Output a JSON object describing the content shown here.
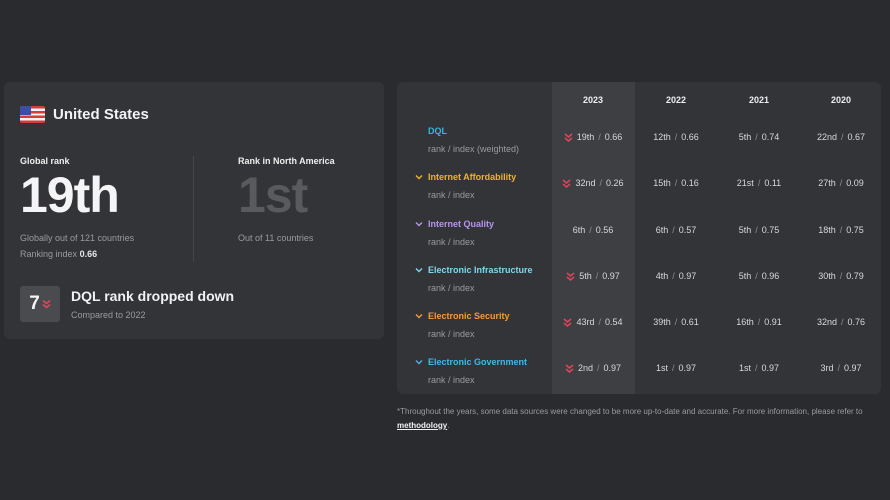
{
  "country": {
    "name": "United States",
    "flag_icon": "us-flag-icon"
  },
  "global_rank": {
    "label": "Global rank",
    "value": "19th",
    "sub": "Globally out of 121 countries",
    "index_label": "Ranking index",
    "index_value": "0.66"
  },
  "regional_rank": {
    "label": "Rank in North America",
    "value": "1st",
    "sub": "Out of 11 countries"
  },
  "change": {
    "amount": "7",
    "title": "DQL rank dropped down",
    "sub": "Compared to 2022",
    "direction_icon": "double-chevron-down-icon"
  },
  "table": {
    "years": [
      "2023",
      "2022",
      "2021",
      "2020"
    ],
    "rows": [
      {
        "name": "DQL",
        "sub": "rank / index (weighted)",
        "color": "#3ab4e0",
        "chevron": false,
        "cells": [
          {
            "rank": "19th",
            "index": "0.66",
            "down": true
          },
          {
            "rank": "12th",
            "index": "0.66"
          },
          {
            "rank": "5th",
            "index": "0.74"
          },
          {
            "rank": "22nd",
            "index": "0.67"
          }
        ]
      },
      {
        "name": "Internet Affordability",
        "sub": "rank / index",
        "color": "#f0b429",
        "chevron": true,
        "cells": [
          {
            "rank": "32nd",
            "index": "0.26",
            "down": true
          },
          {
            "rank": "15th",
            "index": "0.16"
          },
          {
            "rank": "21st",
            "index": "0.11"
          },
          {
            "rank": "27th",
            "index": "0.09"
          }
        ]
      },
      {
        "name": "Internet Quality",
        "sub": "rank / index",
        "color": "#b893f0",
        "chevron": true,
        "cells": [
          {
            "rank": "6th",
            "index": "0.56"
          },
          {
            "rank": "6th",
            "index": "0.57"
          },
          {
            "rank": "5th",
            "index": "0.75"
          },
          {
            "rank": "18th",
            "index": "0.75"
          }
        ]
      },
      {
        "name": "Electronic Infrastructure",
        "sub": "rank / index",
        "color": "#7fd8ec",
        "chevron": true,
        "cells": [
          {
            "rank": "5th",
            "index": "0.97",
            "down": true
          },
          {
            "rank": "4th",
            "index": "0.97"
          },
          {
            "rank": "5th",
            "index": "0.96"
          },
          {
            "rank": "30th",
            "index": "0.79"
          }
        ]
      },
      {
        "name": "Electronic Security",
        "sub": "rank / index",
        "color": "#f59a3a",
        "chevron": true,
        "cells": [
          {
            "rank": "43rd",
            "index": "0.54",
            "down": true
          },
          {
            "rank": "39th",
            "index": "0.61"
          },
          {
            "rank": "16th",
            "index": "0.91"
          },
          {
            "rank": "32nd",
            "index": "0.76"
          }
        ]
      },
      {
        "name": "Electronic Government",
        "sub": "rank / index",
        "color": "#3fb8ea",
        "chevron": true,
        "cells": [
          {
            "rank": "2nd",
            "index": "0.97",
            "down": true
          },
          {
            "rank": "1st",
            "index": "0.97"
          },
          {
            "rank": "1st",
            "index": "0.97"
          },
          {
            "rank": "3rd",
            "index": "0.97"
          }
        ]
      }
    ]
  },
  "footnote": {
    "text": "*Throughout the years, some data sources were changed to be more up-to-date and accurate. For more information, please refer to ",
    "link": "methodology",
    "end": "."
  },
  "colors": {
    "down_arrow": "#e0455a"
  }
}
